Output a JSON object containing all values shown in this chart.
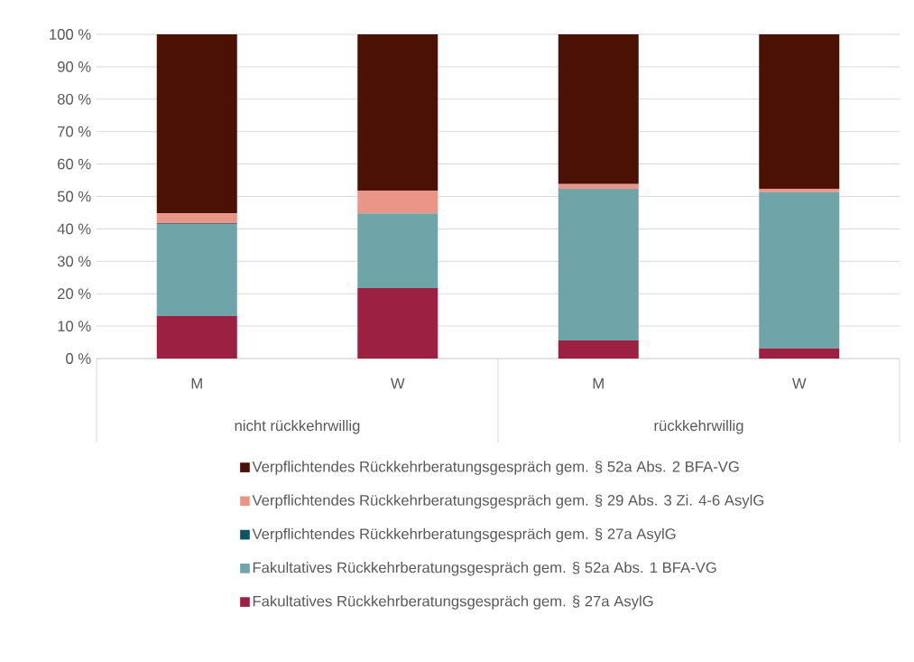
{
  "chart_data": {
    "type": "bar",
    "stacked": true,
    "categories": [
      "M",
      "W",
      "M",
      "W"
    ],
    "annotations": [
      "nicht rückkehrwillig",
      "rückkehrwillig"
    ],
    "series": [
      {
        "name": "Fakultatives Rückkehrberatungsgespräch gem. § 27a AsylG",
        "color": "#9b2042",
        "values": [
          13.1,
          21.7,
          5.6,
          3.1
        ]
      },
      {
        "name": "Fakultatives Rückkehrberatungsgespräch gem. § 52a Abs. 1 BFA-VG",
        "color": "#6fa5a8",
        "values": [
          28.4,
          23.1,
          46.6,
          48.2
        ]
      },
      {
        "name": "Verpflichtendes Rückkehrberatungsgespräch gem. § 27a AsylG",
        "color": "#0f5364",
        "values": [
          0.2,
          0,
          0.2,
          0
        ]
      },
      {
        "name": "Verpflichtendes Rückkehrberatungsgespräch gem. § 29 Abs. 3 Zi. 4-6 AsylG",
        "color": "#e99588",
        "values": [
          3.1,
          7.0,
          1.4,
          1.1
        ]
      },
      {
        "name": "Verpflichtendes Rückkehrberatungsgespräch gem. § 52a Abs. 2 BFA-VG",
        "color": "#4b1104",
        "values": [
          55.2,
          48.2,
          46.2,
          47.6
        ]
      }
    ],
    "ylim": [
      0,
      100
    ],
    "yticks": [
      {
        "value": 0,
        "label": "0 %"
      },
      {
        "value": 10,
        "label": "10 %"
      },
      {
        "value": 20,
        "label": "20 %"
      },
      {
        "value": 30,
        "label": "30 %"
      },
      {
        "value": 40,
        "label": "40 %"
      },
      {
        "value": 50,
        "label": "50 %"
      },
      {
        "value": 60,
        "label": "60 %"
      },
      {
        "value": 70,
        "label": "70 %"
      },
      {
        "value": 80,
        "label": "80 %"
      },
      {
        "value": 90,
        "label": "90 %"
      },
      {
        "value": 100,
        "label": "100 %"
      }
    ],
    "grid": "y",
    "legend": "bottom"
  }
}
